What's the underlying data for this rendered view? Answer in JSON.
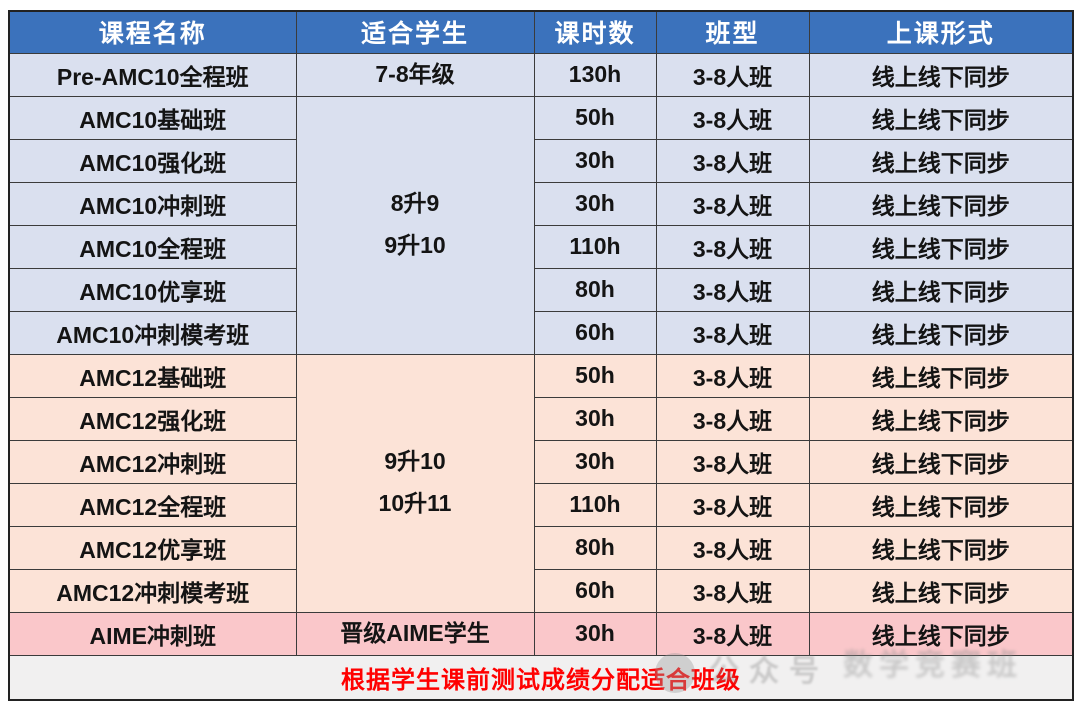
{
  "header": {
    "columns": [
      "课程名称",
      "适合学生",
      "课时数",
      "班型",
      "上课形式"
    ]
  },
  "colors": {
    "header_bg": "#3B72BC",
    "header_text": "#FFFFFF",
    "amc10_bg": "#DAE0EF",
    "amc12_bg": "#FCE3D7",
    "aime_bg": "#FAC7CA",
    "footer_bg": "#F1F0F0",
    "footer_text": "#FF0000",
    "border": "#3B3B3B"
  },
  "groups": [
    {
      "section": "pre-amc10",
      "bg": "#DAE0EF",
      "student_lines": [
        "7-8年级"
      ],
      "rows": [
        {
          "course": "Pre-AMC10全程班",
          "hours": "130h",
          "class_type": "3-8人班",
          "format": "线上线下同步"
        }
      ]
    },
    {
      "section": "amc10",
      "bg": "#DAE0EF",
      "student_lines": [
        "8升9",
        "9升10"
      ],
      "rows": [
        {
          "course": "AMC10基础班",
          "hours": "50h",
          "class_type": "3-8人班",
          "format": "线上线下同步"
        },
        {
          "course": "AMC10强化班",
          "hours": "30h",
          "class_type": "3-8人班",
          "format": "线上线下同步"
        },
        {
          "course": "AMC10冲刺班",
          "hours": "30h",
          "class_type": "3-8人班",
          "format": "线上线下同步"
        },
        {
          "course": "AMC10全程班",
          "hours": "110h",
          "class_type": "3-8人班",
          "format": "线上线下同步"
        },
        {
          "course": "AMC10优享班",
          "hours": "80h",
          "class_type": "3-8人班",
          "format": "线上线下同步"
        },
        {
          "course": "AMC10冲刺模考班",
          "hours": "60h",
          "class_type": "3-8人班",
          "format": "线上线下同步"
        }
      ]
    },
    {
      "section": "amc12",
      "bg": "#FCE3D7",
      "student_lines": [
        "9升10",
        "10升11"
      ],
      "rows": [
        {
          "course": "AMC12基础班",
          "hours": "50h",
          "class_type": "3-8人班",
          "format": "线上线下同步"
        },
        {
          "course": "AMC12强化班",
          "hours": "30h",
          "class_type": "3-8人班",
          "format": "线上线下同步"
        },
        {
          "course": "AMC12冲刺班",
          "hours": "30h",
          "class_type": "3-8人班",
          "format": "线上线下同步"
        },
        {
          "course": "AMC12全程班",
          "hours": "110h",
          "class_type": "3-8人班",
          "format": "线上线下同步"
        },
        {
          "course": "AMC12优享班",
          "hours": "80h",
          "class_type": "3-8人班",
          "format": "线上线下同步"
        },
        {
          "course": "AMC12冲刺模考班",
          "hours": "60h",
          "class_type": "3-8人班",
          "format": "线上线下同步"
        }
      ]
    },
    {
      "section": "aime",
      "bg": "#FAC7CA",
      "student_lines": [
        "晋级AIME学生"
      ],
      "rows": [
        {
          "course": "AIME冲刺班",
          "hours": "30h",
          "class_type": "3-8人班",
          "format": "线上线下同步"
        }
      ]
    }
  ],
  "footer": {
    "note": "根据学生课前测试成绩分配适合班级"
  },
  "watermark": {
    "icon": "circle-logo",
    "text": "公众号",
    "text2": "数学竞赛班"
  }
}
